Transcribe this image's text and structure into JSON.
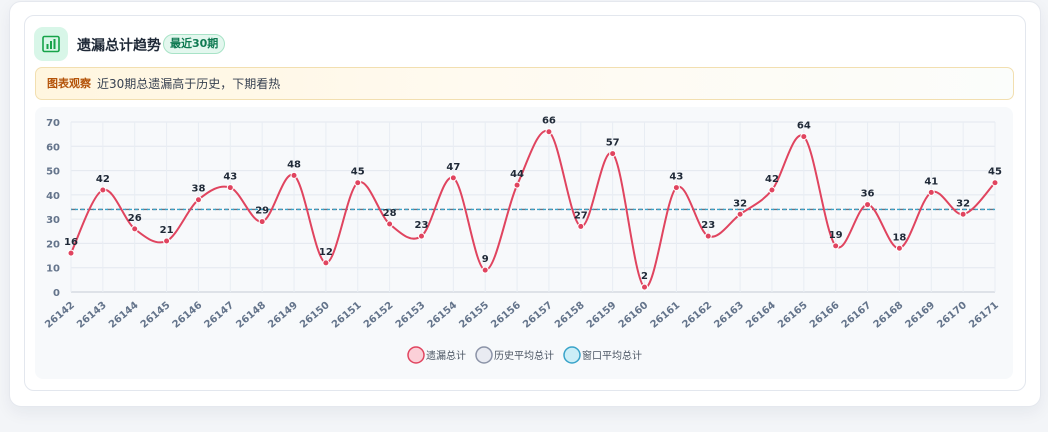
{
  "header": {
    "title": "遗漏总计趋势",
    "badge": "最近30期",
    "icon": "bar-chart-icon"
  },
  "notice": {
    "tag": "图表观察",
    "text": "近30期总遗漏高于历史，下期看热"
  },
  "colors": {
    "series_line": "#e0445f",
    "history_line": "#6b7280",
    "window_line": "#38a3c9",
    "accent_green": "#0f7a52"
  },
  "chart_data": {
    "type": "line",
    "categories": [
      "26142",
      "26143",
      "26144",
      "26145",
      "26146",
      "26147",
      "26148",
      "26149",
      "26150",
      "26151",
      "26152",
      "26153",
      "26154",
      "26155",
      "26156",
      "26157",
      "26158",
      "26159",
      "26160",
      "26161",
      "26162",
      "26163",
      "26164",
      "26165",
      "26166",
      "26167",
      "26168",
      "26169",
      "26170",
      "26171"
    ],
    "series": [
      {
        "name": "遗漏总计",
        "values": [
          16,
          42,
          26,
          21,
          38,
          43,
          29,
          48,
          12,
          45,
          28,
          23,
          47,
          9,
          44,
          66,
          27,
          57,
          2,
          43,
          23,
          32,
          42,
          64,
          19,
          36,
          18,
          41,
          32,
          45
        ]
      },
      {
        "name": "历史平均总计",
        "values": [
          34,
          34,
          34,
          34,
          34,
          34,
          34,
          34,
          34,
          34,
          34,
          34,
          34,
          34,
          34,
          34,
          34,
          34,
          34,
          34,
          34,
          34,
          34,
          34,
          34,
          34,
          34,
          34,
          34,
          34
        ]
      },
      {
        "name": "窗口平均总计",
        "values": [
          34,
          34,
          34,
          34,
          34,
          34,
          34,
          34,
          34,
          34,
          34,
          34,
          34,
          34,
          34,
          34,
          34,
          34,
          34,
          34,
          34,
          34,
          34,
          34,
          34,
          34,
          34,
          34,
          34,
          34
        ]
      }
    ],
    "ylim": [
      0,
      70
    ],
    "yticks": [
      0,
      10,
      20,
      30,
      40,
      50,
      60,
      70
    ],
    "grid": true,
    "legend_position": "bottom-center"
  }
}
